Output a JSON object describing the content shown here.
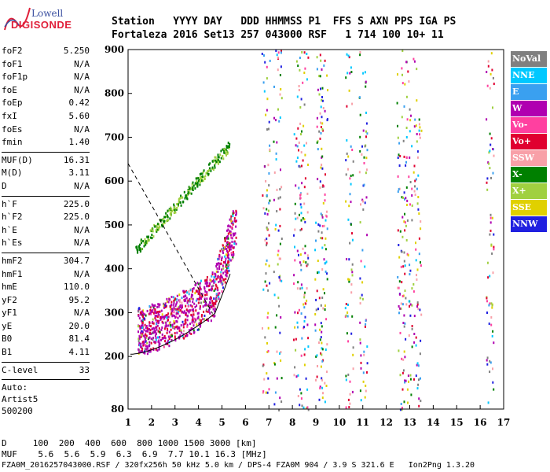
{
  "logo": {
    "line1": "Lowell",
    "line2": "DIGISONDE"
  },
  "header": {
    "row1": "Station   YYYY DAY   DDD HHMMSS P1  FFS S AXN PPS IGA PS",
    "row2": "Fortaleza 2016 Set13 257 043000 RSF   1 714 100 10+ 11"
  },
  "params": [
    [
      {
        "name": "foF2",
        "value": "5.250"
      },
      {
        "name": "foF1",
        "value": "N/A"
      },
      {
        "name": "foF1p",
        "value": "N/A"
      },
      {
        "name": "foE",
        "value": "N/A"
      },
      {
        "name": "foEp",
        "value": "0.42"
      },
      {
        "name": "fxI",
        "value": "5.60"
      },
      {
        "name": "foEs",
        "value": "N/A"
      },
      {
        "name": "fmin",
        "value": "1.40"
      }
    ],
    [
      {
        "name": "MUF(D)",
        "value": "16.31"
      },
      {
        "name": "M(D)",
        "value": "3.11"
      },
      {
        "name": "D",
        "value": "N/A"
      }
    ],
    [
      {
        "name": "h`F",
        "value": "225.0"
      },
      {
        "name": "h`F2",
        "value": "225.0"
      },
      {
        "name": "h`E",
        "value": "N/A"
      },
      {
        "name": "h`Es",
        "value": "N/A"
      }
    ],
    [
      {
        "name": "hmF2",
        "value": "304.7"
      },
      {
        "name": "hmF1",
        "value": "N/A"
      },
      {
        "name": "hmE",
        "value": "110.0"
      },
      {
        "name": "yF2",
        "value": "95.2"
      },
      {
        "name": "yF1",
        "value": "N/A"
      },
      {
        "name": "yE",
        "value": "20.0"
      },
      {
        "name": "B0",
        "value": "81.4"
      },
      {
        "name": "B1",
        "value": "4.11"
      }
    ],
    [
      {
        "name": "C-level",
        "value": "33"
      }
    ]
  ],
  "autoscale": {
    "line1": "Auto:",
    "line2": "Artist5",
    "line3": "500200"
  },
  "legend": [
    {
      "label": "NoVal",
      "color": "#808080"
    },
    {
      "label": "NNE",
      "color": "#00c8ff"
    },
    {
      "label": "E",
      "color": "#3aa0f0"
    },
    {
      "label": "W",
      "color": "#b000b0"
    },
    {
      "label": "Vo-",
      "color": "#ff40a0"
    },
    {
      "label": "Vo+",
      "color": "#e00030"
    },
    {
      "label": "SSW",
      "color": "#f8a0a8"
    },
    {
      "label": "X-",
      "color": "#008000"
    },
    {
      "label": "X+",
      "color": "#a0d040"
    },
    {
      "label": "SSE",
      "color": "#e0d000"
    },
    {
      "label": "NNW",
      "color": "#2020e0"
    }
  ],
  "xaxis": {
    "ticks": [
      "1",
      "2",
      "3",
      "4",
      "5",
      "6",
      "7",
      "8",
      "9",
      "10",
      "11",
      "12",
      "13",
      "14",
      "15",
      "16",
      "17"
    ]
  },
  "yaxis": {
    "ticks": [
      "80",
      "200",
      "300",
      "400",
      "500",
      "600",
      "700",
      "800",
      "900"
    ]
  },
  "bottom": {
    "d_row": "D     100  200  400  600  800 1000 1500 3000 [km]",
    "muf_row": "MUF    5.6  5.6  5.9  6.3  6.9  7.7 10.1 16.3 [MHz]",
    "file_row": "FZA0M_2016257043000.RSF / 320fx256h 50 kHz 5.0 km / DPS-4 FZA0M 904 / 3.9 S 321.6 E   Ion2Png 1.3.20"
  }
}
